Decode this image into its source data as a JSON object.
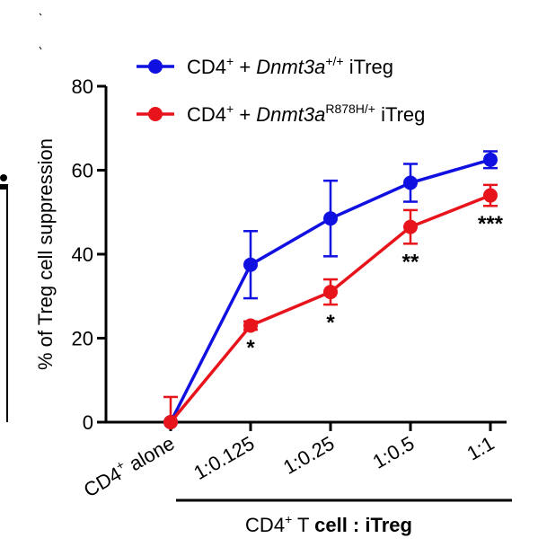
{
  "chart_data": {
    "type": "line",
    "categories": [
      "CD4+ alone",
      "1:0.125",
      "1:0.25",
      "1:0.5",
      "1:1"
    ],
    "category_labels": [
      {
        "base": "CD4",
        "sup": "+",
        "rest": " alone"
      },
      {
        "base": "1:0.125",
        "sup": "",
        "rest": ""
      },
      {
        "base": "1:0.25",
        "sup": "",
        "rest": ""
      },
      {
        "base": "1:0.5",
        "sup": "",
        "rest": ""
      },
      {
        "base": "1:1",
        "sup": "",
        "rest": ""
      }
    ],
    "ylabel": "% of Treg cell suppression",
    "xlabel": {
      "pre": "CD4",
      "sup": "+",
      "mid": " T ",
      "bold": "cell : iTreg"
    },
    "ylim": [
      0,
      80
    ],
    "yticks": [
      0,
      20,
      40,
      60,
      80
    ],
    "series": [
      {
        "name": "CD4+ + Dnmt3a+/+ iTreg",
        "legend": {
          "prefix": "CD4",
          "prefix_sup": "+",
          "mid": " + ",
          "gene": "Dnmt3a",
          "gene_sup": "+/+",
          "suffix": " iTreg"
        },
        "color": "#1010e0",
        "values": [
          0,
          37.5,
          48.5,
          57,
          62.5
        ],
        "errors": [
          0,
          8,
          9,
          4.5,
          2
        ]
      },
      {
        "name": "CD4+ + Dnmt3aR878H/+ iTreg",
        "legend": {
          "prefix": "CD4",
          "prefix_sup": "+",
          "mid": " + ",
          "gene": "Dnmt3a",
          "gene_sup": "R878H/+",
          "suffix": " iTreg"
        },
        "color": "#e8141c",
        "values": [
          0,
          23,
          31,
          46.5,
          54
        ],
        "errors": [
          6,
          1,
          3,
          4,
          2.5
        ]
      }
    ],
    "significance": [
      "",
      "*",
      "*",
      "**",
      "***"
    ],
    "grid": false,
    "legend_position": "top"
  }
}
